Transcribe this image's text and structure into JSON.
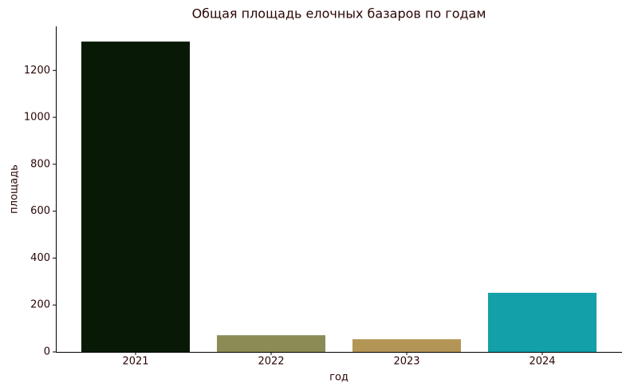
{
  "chart_data": {
    "type": "bar",
    "title": "Общая площадь елочных базаров по годам",
    "x_label": "год",
    "y_label": "площадь",
    "categories": [
      "2021",
      "2022",
      "2023",
      "2024"
    ],
    "values": [
      1323,
      71,
      54,
      252
    ],
    "colors": [
      "#081a05",
      "#8b8c55",
      "#b39656",
      "#13a0a8"
    ],
    "ylim": [
      0,
      1388
    ],
    "yticks": [
      0,
      200,
      400,
      600,
      800,
      1000,
      1200
    ],
    "grid": false
  }
}
